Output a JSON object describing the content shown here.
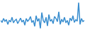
{
  "chart_data": {
    "type": "line",
    "color": "#3a8ecf",
    "tick_labels": false,
    "grid": false,
    "ylim": [
      25,
      100
    ],
    "values": [
      50,
      45,
      55,
      48,
      52,
      40,
      50,
      47,
      58,
      44,
      50,
      53,
      42,
      49,
      56,
      46,
      51,
      38,
      55,
      48,
      52,
      60,
      45,
      50,
      35,
      62,
      48,
      55,
      30,
      70,
      50,
      44,
      58,
      36,
      65,
      48,
      52,
      42,
      60,
      55,
      47,
      72,
      40,
      53,
      46,
      58,
      44,
      50,
      38,
      56,
      49,
      62,
      45,
      52,
      48,
      95,
      40,
      55,
      47,
      50
    ]
  }
}
